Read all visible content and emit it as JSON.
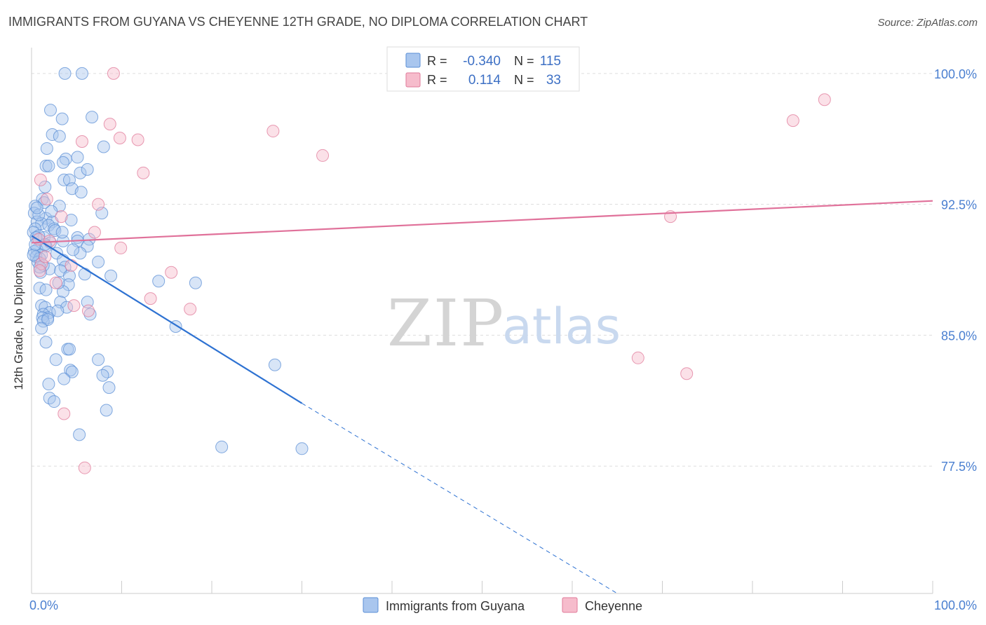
{
  "header": {
    "title": "IMMIGRANTS FROM GUYANA VS CHEYENNE 12TH GRADE, NO DIPLOMA CORRELATION CHART",
    "source": "Source: ZipAtlas.com"
  },
  "watermark": {
    "zip": "ZIP",
    "atlas": "atlas"
  },
  "legend": {
    "r_label": "R =",
    "n_label": "N =",
    "rows": [
      {
        "r": "-0.340",
        "n": "115",
        "color": "#a9c6ee",
        "stroke": "#5b8fd6"
      },
      {
        "r": "0.114",
        "n": "33",
        "color": "#f6bccc",
        "stroke": "#e07a9a"
      }
    ]
  },
  "bottom_legend": [
    {
      "label": "Immigrants from Guyana",
      "color": "#a9c6ee",
      "stroke": "#5b8fd6"
    },
    {
      "label": "Cheyenne",
      "color": "#f6bccc",
      "stroke": "#e07a9a"
    }
  ],
  "chart_data": {
    "type": "scatter",
    "title": "IMMIGRANTS FROM GUYANA VS CHEYENNE 12TH GRADE, NO DIPLOMA CORRELATION CHART",
    "xlabel": "",
    "ylabel": "12th Grade, No Diploma",
    "xlim": [
      0,
      100
    ],
    "ylim": [
      70.2,
      101.2
    ],
    "y_ticks": [
      {
        "value": 100,
        "label": "100.0%"
      },
      {
        "value": 92.5,
        "label": "92.5%"
      },
      {
        "value": 85,
        "label": "85.0%"
      },
      {
        "value": 77.5,
        "label": "77.5%"
      }
    ],
    "x_tick_labels": [
      {
        "value": 0,
        "label": "0.0%"
      },
      {
        "value": 100,
        "label": "100.0%"
      }
    ],
    "x_minor_ticks": [
      10,
      20,
      30,
      40,
      50,
      60,
      70,
      80,
      90
    ],
    "grid": true,
    "legend_position": "top-center",
    "series": [
      {
        "name": "Immigrants from Guyana",
        "color": "#a9c6ee",
        "stroke": "#5b8fd6",
        "r": -0.34,
        "n": 115,
        "trend": {
          "x0": 0,
          "y0": 90.7,
          "x1": 30,
          "y1": 81.1,
          "dash_x1": 65,
          "dash_y1": 70.2
        },
        "points": [
          [
            3.7,
            100.0
          ],
          [
            5.6,
            100.0
          ],
          [
            2.1,
            97.9
          ],
          [
            3.4,
            97.4
          ],
          [
            6.7,
            97.5
          ],
          [
            2.3,
            96.5
          ],
          [
            3.1,
            96.4
          ],
          [
            1.7,
            95.7
          ],
          [
            8.0,
            95.8
          ],
          [
            3.8,
            95.1
          ],
          [
            3.5,
            94.9
          ],
          [
            5.1,
            95.2
          ],
          [
            1.6,
            94.7
          ],
          [
            1.9,
            94.7
          ],
          [
            5.4,
            94.3
          ],
          [
            6.2,
            94.5
          ],
          [
            3.6,
            93.9
          ],
          [
            4.2,
            93.9
          ],
          [
            1.5,
            93.5
          ],
          [
            4.5,
            93.4
          ],
          [
            5.5,
            93.2
          ],
          [
            1.2,
            92.8
          ],
          [
            1.4,
            92.6
          ],
          [
            3.1,
            92.4
          ],
          [
            0.4,
            92.4
          ],
          [
            0.3,
            92.0
          ],
          [
            7.8,
            92.0
          ],
          [
            1.6,
            91.7
          ],
          [
            2.3,
            91.5
          ],
          [
            0.6,
            91.5
          ],
          [
            1.1,
            91.4
          ],
          [
            1.9,
            91.3
          ],
          [
            2.5,
            91.1
          ],
          [
            0.4,
            91.1
          ],
          [
            4.4,
            91.6
          ],
          [
            0.2,
            90.9
          ],
          [
            1.4,
            90.6
          ],
          [
            0.8,
            90.7
          ],
          [
            5.1,
            90.6
          ],
          [
            3.5,
            90.4
          ],
          [
            6.4,
            90.5
          ],
          [
            5.1,
            90.4
          ],
          [
            2.1,
            90.3
          ],
          [
            1.6,
            90.1
          ],
          [
            6.2,
            90.1
          ],
          [
            0.6,
            89.9
          ],
          [
            0.3,
            89.8
          ],
          [
            1.1,
            89.6
          ],
          [
            2.8,
            89.7
          ],
          [
            5.4,
            89.7
          ],
          [
            0.5,
            89.5
          ],
          [
            0.9,
            89.4
          ],
          [
            0.7,
            89.2
          ],
          [
            3.5,
            89.3
          ],
          [
            7.4,
            89.2
          ],
          [
            3.7,
            88.9
          ],
          [
            2.0,
            88.8
          ],
          [
            3.2,
            88.7
          ],
          [
            1.0,
            88.6
          ],
          [
            5.9,
            88.5
          ],
          [
            8.8,
            88.4
          ],
          [
            4.2,
            88.4
          ],
          [
            14.1,
            88.1
          ],
          [
            18.2,
            88.0
          ],
          [
            4.1,
            87.9
          ],
          [
            0.9,
            87.7
          ],
          [
            1.6,
            87.6
          ],
          [
            3.5,
            87.5
          ],
          [
            6.2,
            86.9
          ],
          [
            3.2,
            86.9
          ],
          [
            1.1,
            86.7
          ],
          [
            1.5,
            86.6
          ],
          [
            3.9,
            86.6
          ],
          [
            2.0,
            86.3
          ],
          [
            1.3,
            86.2
          ],
          [
            1.8,
            86.0
          ],
          [
            6.5,
            86.2
          ],
          [
            1.2,
            86.0
          ],
          [
            1.3,
            85.8
          ],
          [
            16.0,
            85.5
          ],
          [
            1.6,
            84.6
          ],
          [
            4.0,
            84.2
          ],
          [
            4.2,
            84.2
          ],
          [
            2.7,
            83.6
          ],
          [
            7.4,
            83.6
          ],
          [
            27.0,
            83.3
          ],
          [
            4.3,
            83.0
          ],
          [
            4.5,
            82.9
          ],
          [
            8.4,
            82.9
          ],
          [
            7.9,
            82.7
          ],
          [
            3.6,
            82.5
          ],
          [
            1.9,
            82.2
          ],
          [
            8.6,
            82.0
          ],
          [
            2.0,
            81.4
          ],
          [
            2.5,
            81.2
          ],
          [
            8.3,
            80.7
          ],
          [
            5.3,
            79.3
          ],
          [
            21.1,
            78.6
          ],
          [
            30.0,
            78.5
          ],
          [
            0.5,
            90.6
          ],
          [
            0.8,
            91.9
          ],
          [
            2.6,
            91.0
          ],
          [
            1.3,
            89.0
          ],
          [
            3.0,
            88.0
          ],
          [
            0.2,
            89.6
          ],
          [
            1.8,
            85.9
          ],
          [
            0.9,
            88.9
          ],
          [
            3.4,
            90.9
          ],
          [
            2.2,
            92.1
          ],
          [
            4.6,
            89.9
          ],
          [
            1.5,
            90.2
          ],
          [
            0.6,
            92.3
          ],
          [
            2.9,
            86.4
          ],
          [
            1.1,
            85.4
          ],
          [
            0.4,
            90.2
          ]
        ]
      },
      {
        "name": "Cheyenne",
        "color": "#f6bccc",
        "stroke": "#e07a9a",
        "r": 0.114,
        "n": 33,
        "trend": {
          "x0": 0,
          "y0": 90.3,
          "x1": 100,
          "y1": 92.7
        },
        "points": [
          [
            9.1,
            100.0
          ],
          [
            88.0,
            98.5
          ],
          [
            84.5,
            97.3
          ],
          [
            8.7,
            97.1
          ],
          [
            26.8,
            96.7
          ],
          [
            9.8,
            96.3
          ],
          [
            11.8,
            96.2
          ],
          [
            5.6,
            96.1
          ],
          [
            32.3,
            95.3
          ],
          [
            12.4,
            94.3
          ],
          [
            1.0,
            93.9
          ],
          [
            1.7,
            92.8
          ],
          [
            7.4,
            92.5
          ],
          [
            3.3,
            91.8
          ],
          [
            70.9,
            91.8
          ],
          [
            7.0,
            90.9
          ],
          [
            0.8,
            90.5
          ],
          [
            2.0,
            90.4
          ],
          [
            9.9,
            90.0
          ],
          [
            1.1,
            89.1
          ],
          [
            4.4,
            89.0
          ],
          [
            0.9,
            88.7
          ],
          [
            15.5,
            88.6
          ],
          [
            2.7,
            88.0
          ],
          [
            13.2,
            87.1
          ],
          [
            4.7,
            86.7
          ],
          [
            6.3,
            86.4
          ],
          [
            17.6,
            86.5
          ],
          [
            67.3,
            83.7
          ],
          [
            72.7,
            82.8
          ],
          [
            3.6,
            80.5
          ],
          [
            5.9,
            77.4
          ],
          [
            1.5,
            89.5
          ]
        ]
      }
    ]
  }
}
